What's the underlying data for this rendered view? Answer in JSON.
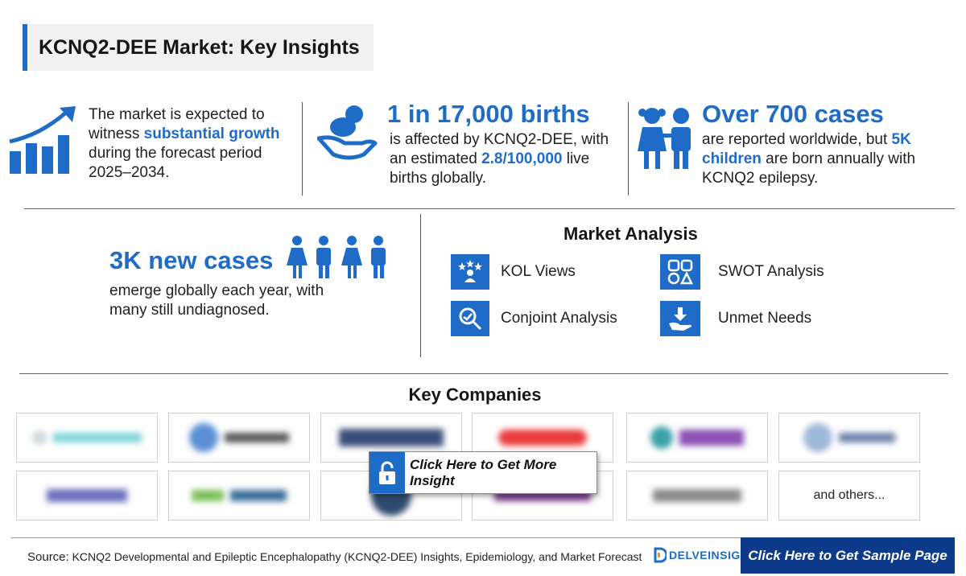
{
  "header": {
    "title": "KCNQ2-DEE Market: Key Insights"
  },
  "insights": {
    "growth": {
      "pre": "The market is expected to witness ",
      "highlight": "substantial growth",
      "post": " during the forecast period 2025–2034.",
      "icon": "growth-chart-icon"
    },
    "births": {
      "headline": "1 in 17,000 births",
      "pre": "is affected by KCNQ2-DEE, with an estimated ",
      "highlight": "2.8/100,000",
      "post": " live births globally.",
      "icon": "baby-in-hand-icon"
    },
    "cases": {
      "headline": "Over 700 cases",
      "pre": "are reported worldwide, but ",
      "highlight": "5K children",
      "post": " are born annually with KCNQ2 epilepsy.",
      "icon": "children-icon"
    },
    "new_cases": {
      "headline": "3K new cases",
      "text": "emerge globally each year, with many still undiagnosed.",
      "icon": "people-icon"
    }
  },
  "market_analysis": {
    "title": "Market Analysis",
    "items": [
      {
        "label": "KOL Views",
        "icon": "kol-views-icon"
      },
      {
        "label": "SWOT Analysis",
        "icon": "swot-icon"
      },
      {
        "label": "Conjoint Analysis",
        "icon": "conjoint-analysis-icon"
      },
      {
        "label": "Unmet Needs",
        "icon": "unmet-needs-icon"
      }
    ]
  },
  "key_companies": {
    "title": "Key Companies",
    "others_label": "and others...",
    "cta_label": "Click Here to Get More Insight"
  },
  "footer": {
    "source_label": "Source:",
    "source_text": "KCNQ2 Developmental and Epileptic Encephalopathy (KCNQ2-DEE) Insights, Epidemiology, and Market Forecast",
    "brand": "DELVEINSIGHT",
    "sample_button": "Click Here to Get Sample Page"
  },
  "colors": {
    "accent": "#1f6cc8",
    "dark_button": "#0e3a8c"
  }
}
